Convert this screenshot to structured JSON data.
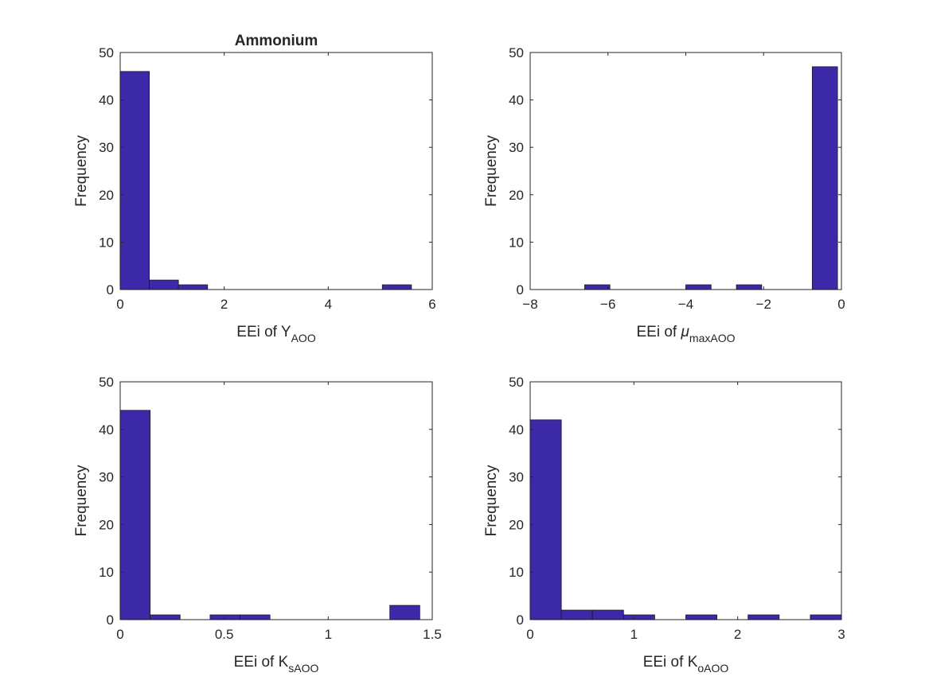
{
  "figure": {
    "background": "#ffffff",
    "bar_color": "#3c29a8",
    "edge_color": "#1a1a1a"
  },
  "chart_data": [
    {
      "type": "bar",
      "subtype": "histogram",
      "title": "Ammonium",
      "xlabel": {
        "prefix": "EEi of ",
        "base": "Y",
        "subscript": "AOO"
      },
      "ylabel": "Frequency",
      "xlim": [
        0,
        6
      ],
      "ylim": [
        0,
        50
      ],
      "xticks": [
        "0",
        "2",
        "4",
        "6"
      ],
      "yticks": [
        "0",
        "10",
        "20",
        "30",
        "40",
        "50"
      ],
      "bin_edges": [
        0,
        0.56,
        1.12,
        1.68,
        2.24,
        2.8,
        3.36,
        3.92,
        4.48,
        5.04,
        5.6
      ],
      "values": [
        46,
        2,
        1,
        0,
        0,
        0,
        0,
        0,
        0,
        1
      ],
      "grid": false
    },
    {
      "type": "bar",
      "subtype": "histogram",
      "title": "",
      "xlabel": {
        "prefix": "EEi of ",
        "base": "μ",
        "subscript": "maxAOO"
      },
      "ylabel": "Frequency",
      "xlim": [
        -8,
        0
      ],
      "ylim": [
        0,
        50
      ],
      "xticks": [
        "−8",
        "−6",
        "−4",
        "−2",
        "0"
      ],
      "yticks": [
        "0",
        "10",
        "20",
        "30",
        "40",
        "50"
      ],
      "bin_edges": [
        -6.6,
        -5.95,
        -5.3,
        -4.65,
        -4.0,
        -3.35,
        -2.7,
        -2.05,
        -1.4,
        -0.75,
        -0.1
      ],
      "values": [
        1,
        0,
        0,
        0,
        1,
        0,
        1,
        0,
        0,
        47
      ],
      "grid": false
    },
    {
      "type": "bar",
      "subtype": "histogram",
      "title": "",
      "xlabel": {
        "prefix": "EEi of ",
        "base": "K",
        "subscript": "sAOO"
      },
      "ylabel": "Frequency",
      "xlim": [
        0,
        1.5
      ],
      "ylim": [
        0,
        50
      ],
      "xticks": [
        "0",
        "0.5",
        "1",
        "1.5"
      ],
      "yticks": [
        "0",
        "10",
        "20",
        "30",
        "40",
        "50"
      ],
      "bin_edges": [
        0,
        0.144,
        0.288,
        0.432,
        0.576,
        0.72,
        0.864,
        1.008,
        1.152,
        1.296,
        1.44
      ],
      "values": [
        44,
        1,
        0,
        1,
        1,
        0,
        0,
        0,
        0,
        3
      ],
      "grid": false
    },
    {
      "type": "bar",
      "subtype": "histogram",
      "title": "",
      "xlabel": {
        "prefix": "EEi of ",
        "base": "K",
        "subscript": "oAOO"
      },
      "ylabel": "Frequency",
      "xlim": [
        0,
        3
      ],
      "ylim": [
        0,
        50
      ],
      "xticks": [
        "0",
        "1",
        "2",
        "3"
      ],
      "yticks": [
        "0",
        "10",
        "20",
        "30",
        "40",
        "50"
      ],
      "bin_edges": [
        0,
        0.3,
        0.6,
        0.9,
        1.2,
        1.5,
        1.8,
        2.1,
        2.4,
        2.7,
        3.0
      ],
      "values": [
        42,
        2,
        2,
        1,
        0,
        1,
        0,
        1,
        0,
        1
      ],
      "grid": false
    }
  ]
}
